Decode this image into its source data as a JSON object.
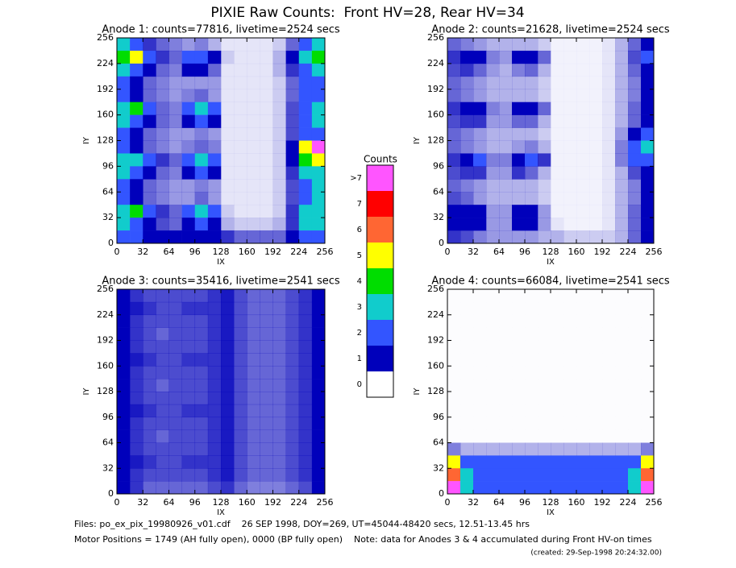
{
  "title": "PIXIE Raw Counts:  Front HV=28, Rear HV=34",
  "colorbar": {
    "title": "Counts",
    "labels": [
      ">7",
      "7",
      "6",
      "5",
      "4",
      "3",
      "2",
      "1",
      "0"
    ],
    "colors": [
      "#ff55ff",
      "#ff0000",
      "#ff6633",
      "#ffff00",
      "#00dd00",
      "#11cccc",
      "#3355ff",
      "#0000bb",
      "#ffffff"
    ]
  },
  "footer": [
    "Files: po_ex_pix_19980926_v01.cdf    26 SEP 1998, DOY=269, UT=45044-48420 secs, 12.51-13.45 hrs",
    "Motor Positions = 1749 (AH fully open), 0000 (BP fully open)    Note: data for Anodes 3 & 4 accumulated during Front HV-on times",
    "(created: 29-Sep-1998 20:24:32.00)"
  ],
  "chart_data": [
    {
      "type": "heatmap",
      "title": "Anode 1: counts=77816, livetime=2524 secs",
      "xlabel": "IX",
      "ylabel": "IY",
      "xlim": [
        0,
        256
      ],
      "ylim": [
        0,
        256
      ],
      "xticks": [
        0,
        32,
        64,
        96,
        128,
        160,
        192,
        224,
        256
      ],
      "yticks": [
        0,
        32,
        64,
        96,
        128,
        160,
        192,
        224,
        256
      ],
      "z": [
        [
          3,
          2,
          0.8,
          0.6,
          0.5,
          0.4,
          0.5,
          0.3,
          0.1,
          0.1,
          0.1,
          0.1,
          0.2,
          0.6,
          2,
          3
        ],
        [
          4,
          5,
          1.5,
          0.8,
          0.6,
          1.5,
          2,
          1,
          0.2,
          0.1,
          0.1,
          0.1,
          0.3,
          1,
          3,
          4
        ],
        [
          3,
          2,
          1,
          0.6,
          0.5,
          1,
          1,
          0.6,
          0.1,
          0.1,
          0.1,
          0.1,
          0.3,
          0.8,
          2,
          3
        ],
        [
          2,
          1,
          0.6,
          0.5,
          0.4,
          0.4,
          0.4,
          0.4,
          0.1,
          0.1,
          0.1,
          0.1,
          0.2,
          0.6,
          2,
          2
        ],
        [
          2,
          1,
          0.6,
          0.5,
          0.4,
          0.5,
          0.6,
          0.4,
          0.1,
          0.1,
          0.1,
          0.1,
          0.2,
          0.6,
          2,
          2
        ],
        [
          3,
          4,
          2,
          0.6,
          0.5,
          2,
          3,
          1.5,
          0.1,
          0.1,
          0.1,
          0.1,
          0.2,
          0.7,
          2,
          3
        ],
        [
          3,
          2,
          1,
          0.6,
          0.5,
          1,
          1.5,
          1,
          0.1,
          0.1,
          0.1,
          0.1,
          0.2,
          0.7,
          2,
          3
        ],
        [
          2,
          1,
          0.6,
          0.5,
          0.4,
          0.4,
          0.5,
          0.4,
          0.1,
          0.1,
          0.1,
          0.1,
          0.2,
          0.7,
          2,
          2
        ],
        [
          2,
          1,
          0.6,
          0.5,
          0.4,
          0.5,
          0.6,
          0.5,
          0.1,
          0.1,
          0.1,
          0.1,
          0.2,
          1,
          5,
          8
        ],
        [
          3,
          3,
          2,
          0.8,
          0.6,
          2,
          3,
          2,
          0.1,
          0.1,
          0.1,
          0.1,
          0.2,
          1,
          4,
          5
        ],
        [
          3,
          2,
          1,
          0.6,
          0.5,
          1,
          1.5,
          1,
          0.1,
          0.1,
          0.1,
          0.1,
          0.2,
          0.8,
          3,
          3
        ],
        [
          2,
          1,
          0.6,
          0.5,
          0.4,
          0.4,
          0.5,
          0.4,
          0.1,
          0.1,
          0.1,
          0.1,
          0.2,
          0.7,
          2,
          3
        ],
        [
          2,
          1,
          0.6,
          0.5,
          0.4,
          0.4,
          0.6,
          0.4,
          0.1,
          0.1,
          0.1,
          0.1,
          0.2,
          0.7,
          2,
          3
        ],
        [
          3,
          4,
          2,
          0.8,
          0.6,
          2,
          3,
          1.5,
          0.2,
          0.1,
          0.1,
          0.1,
          0.2,
          0.8,
          3,
          3
        ],
        [
          3,
          2,
          1,
          0.7,
          0.6,
          1,
          1.5,
          1,
          0.3,
          0.2,
          0.2,
          0.2,
          0.3,
          0.8,
          3,
          3
        ],
        [
          2,
          1.5,
          1,
          1,
          1,
          1,
          1,
          1,
          0.8,
          0.6,
          0.6,
          0.6,
          0.6,
          1,
          2,
          2
        ]
      ]
    },
    {
      "type": "heatmap",
      "title": "Anode 2: counts=21628, livetime=2524 secs",
      "xlabel": "IX",
      "ylabel": "IY",
      "xlim": [
        0,
        256
      ],
      "ylim": [
        0,
        256
      ],
      "xticks": [
        0,
        32,
        64,
        96,
        128,
        160,
        192,
        224,
        256
      ],
      "yticks": [
        0,
        32,
        64,
        96,
        128,
        160,
        192,
        224,
        256
      ],
      "z": [
        [
          0.6,
          0.5,
          0.4,
          0.3,
          0.3,
          0.3,
          0.3,
          0.2,
          0.05,
          0.05,
          0.05,
          0.05,
          0.1,
          0.3,
          0.6,
          1
        ],
        [
          0.8,
          1,
          1,
          0.5,
          0.4,
          1,
          1.2,
          0.6,
          0.05,
          0.05,
          0.05,
          0.05,
          0.1,
          0.3,
          0.7,
          1.5
        ],
        [
          0.7,
          0.8,
          0.6,
          0.4,
          0.3,
          0.5,
          0.6,
          0.3,
          0.05,
          0.05,
          0.05,
          0.05,
          0.1,
          0.3,
          0.6,
          1
        ],
        [
          0.6,
          0.5,
          0.4,
          0.3,
          0.3,
          0.3,
          0.3,
          0.2,
          0.05,
          0.05,
          0.05,
          0.05,
          0.1,
          0.3,
          0.5,
          1
        ],
        [
          0.6,
          0.5,
          0.4,
          0.3,
          0.3,
          0.3,
          0.3,
          0.2,
          0.05,
          0.05,
          0.05,
          0.05,
          0.1,
          0.3,
          0.5,
          1
        ],
        [
          0.8,
          1,
          1.2,
          0.5,
          0.4,
          1,
          1.2,
          0.6,
          0.05,
          0.05,
          0.05,
          0.05,
          0.1,
          0.3,
          0.6,
          1
        ],
        [
          0.7,
          0.8,
          0.8,
          0.4,
          0.4,
          0.6,
          0.6,
          0.3,
          0.05,
          0.05,
          0.05,
          0.05,
          0.1,
          0.3,
          0.6,
          1
        ],
        [
          0.6,
          0.5,
          0.4,
          0.3,
          0.3,
          0.3,
          0.3,
          0.2,
          0.05,
          0.05,
          0.05,
          0.05,
          0.1,
          0.4,
          1,
          1.5
        ],
        [
          0.6,
          0.5,
          0.4,
          0.3,
          0.3,
          0.4,
          0.5,
          0.3,
          0.05,
          0.05,
          0.05,
          0.05,
          0.1,
          0.5,
          2,
          3
        ],
        [
          0.8,
          1.2,
          1.5,
          0.5,
          0.5,
          1.2,
          1.5,
          0.8,
          0.05,
          0.05,
          0.05,
          0.05,
          0.1,
          0.5,
          2,
          2
        ],
        [
          0.7,
          0.8,
          0.8,
          0.4,
          0.4,
          0.8,
          0.6,
          0.3,
          0.05,
          0.05,
          0.05,
          0.05,
          0.1,
          0.3,
          0.7,
          1
        ],
        [
          0.6,
          0.5,
          0.4,
          0.3,
          0.3,
          0.3,
          0.3,
          0.2,
          0.05,
          0.05,
          0.05,
          0.05,
          0.1,
          0.3,
          0.5,
          1
        ],
        [
          0.7,
          0.6,
          0.4,
          0.3,
          0.3,
          0.3,
          0.3,
          0.2,
          0.05,
          0.05,
          0.05,
          0.05,
          0.1,
          0.3,
          0.5,
          1
        ],
        [
          1,
          1.2,
          1,
          0.4,
          0.4,
          1,
          1,
          0.4,
          0.05,
          0.05,
          0.05,
          0.05,
          0.1,
          0.3,
          0.6,
          1
        ],
        [
          1,
          1.2,
          1,
          0.4,
          0.4,
          1,
          1,
          0.4,
          0.1,
          0.05,
          0.05,
          0.05,
          0.1,
          0.3,
          0.6,
          1
        ],
        [
          0.8,
          0.7,
          0.5,
          0.4,
          0.4,
          0.4,
          0.4,
          0.3,
          0.3,
          0.2,
          0.2,
          0.2,
          0.2,
          0.3,
          0.6,
          1
        ]
      ]
    },
    {
      "type": "heatmap",
      "title": "Anode 3: counts=35416, livetime=2541 secs",
      "xlabel": "IX",
      "ylabel": "IY",
      "xlim": [
        0,
        256
      ],
      "ylim": [
        0,
        256
      ],
      "xticks": [
        0,
        32,
        64,
        96,
        128,
        160,
        192,
        224,
        256
      ],
      "yticks": [
        0,
        32,
        64,
        96,
        128,
        160,
        192,
        224,
        256
      ],
      "z": [
        [
          1,
          0.8,
          0.7,
          0.7,
          0.7,
          0.7,
          0.7,
          0.8,
          0.9,
          0.7,
          0.6,
          0.6,
          0.6,
          0.7,
          0.8,
          1
        ],
        [
          1,
          0.9,
          0.8,
          0.7,
          0.7,
          0.8,
          0.8,
          0.8,
          0.9,
          0.7,
          0.6,
          0.6,
          0.6,
          0.7,
          0.8,
          1
        ],
        [
          1,
          0.8,
          0.7,
          0.7,
          0.7,
          0.7,
          0.7,
          0.8,
          0.9,
          0.7,
          0.6,
          0.6,
          0.6,
          0.7,
          0.8,
          1
        ],
        [
          1,
          0.8,
          0.7,
          0.6,
          0.7,
          0.7,
          0.7,
          0.8,
          0.9,
          0.7,
          0.6,
          0.6,
          0.6,
          0.7,
          0.8,
          1
        ],
        [
          1,
          0.8,
          0.7,
          0.7,
          0.7,
          0.7,
          0.7,
          0.8,
          0.9,
          0.7,
          0.6,
          0.6,
          0.6,
          0.7,
          0.8,
          1
        ],
        [
          1,
          0.9,
          0.8,
          0.7,
          0.7,
          0.8,
          0.8,
          0.8,
          0.9,
          0.7,
          0.6,
          0.6,
          0.6,
          0.7,
          0.8,
          1
        ],
        [
          1,
          0.8,
          0.7,
          0.7,
          0.7,
          0.7,
          0.7,
          0.8,
          0.9,
          0.7,
          0.6,
          0.6,
          0.6,
          0.7,
          0.8,
          1
        ],
        [
          1,
          0.8,
          0.7,
          0.6,
          0.7,
          0.7,
          0.7,
          0.8,
          0.9,
          0.7,
          0.6,
          0.6,
          0.6,
          0.7,
          0.8,
          1
        ],
        [
          1,
          0.8,
          0.7,
          0.7,
          0.7,
          0.7,
          0.7,
          0.8,
          0.9,
          0.7,
          0.6,
          0.6,
          0.6,
          0.7,
          0.8,
          1
        ],
        [
          1,
          0.9,
          0.8,
          0.7,
          0.7,
          0.8,
          0.8,
          0.8,
          0.9,
          0.7,
          0.6,
          0.6,
          0.6,
          0.7,
          0.8,
          1
        ],
        [
          1,
          0.8,
          0.7,
          0.7,
          0.7,
          0.7,
          0.7,
          0.8,
          0.9,
          0.7,
          0.6,
          0.6,
          0.6,
          0.7,
          0.8,
          1
        ],
        [
          1,
          0.8,
          0.7,
          0.6,
          0.7,
          0.7,
          0.7,
          0.8,
          0.9,
          0.7,
          0.6,
          0.6,
          0.6,
          0.7,
          0.8,
          1
        ],
        [
          1,
          0.8,
          0.7,
          0.7,
          0.7,
          0.7,
          0.7,
          0.8,
          0.9,
          0.7,
          0.6,
          0.6,
          0.6,
          0.7,
          0.8,
          1
        ],
        [
          1,
          0.9,
          0.8,
          0.7,
          0.7,
          0.8,
          0.8,
          0.8,
          0.9,
          0.7,
          0.6,
          0.6,
          0.6,
          0.7,
          0.8,
          1
        ],
        [
          1,
          0.8,
          0.7,
          0.7,
          0.7,
          0.7,
          0.7,
          0.8,
          0.9,
          0.7,
          0.6,
          0.6,
          0.6,
          0.7,
          0.8,
          1
        ],
        [
          1,
          0.8,
          0.6,
          0.6,
          0.6,
          0.6,
          0.6,
          0.7,
          0.8,
          0.6,
          0.5,
          0.5,
          0.5,
          0.6,
          0.7,
          1
        ]
      ]
    },
    {
      "type": "heatmap",
      "title": "Anode 4: counts=66084, livetime=2541 secs",
      "xlabel": "IX",
      "ylabel": "IY",
      "xlim": [
        0,
        256
      ],
      "ylim": [
        0,
        256
      ],
      "xticks": [
        0,
        32,
        64,
        96,
        128,
        160,
        192,
        224,
        256
      ],
      "yticks": [
        0,
        32,
        64,
        96,
        128,
        160,
        192,
        224,
        256
      ],
      "z": [
        [
          0.01,
          0.01,
          0.01,
          0.01,
          0.01,
          0.01,
          0.01,
          0.01,
          0.01,
          0.01,
          0.01,
          0.01,
          0.01,
          0.01,
          0.01,
          0.01
        ],
        [
          0.01,
          0.01,
          0.01,
          0.01,
          0.01,
          0.01,
          0.01,
          0.01,
          0.01,
          0.01,
          0.01,
          0.01,
          0.01,
          0.01,
          0.01,
          0.01
        ],
        [
          0.01,
          0.01,
          0.01,
          0.01,
          0.01,
          0.01,
          0.01,
          0.01,
          0.01,
          0.01,
          0.01,
          0.01,
          0.01,
          0.01,
          0.01,
          0.01
        ],
        [
          0.01,
          0.01,
          0.01,
          0.01,
          0.01,
          0.01,
          0.01,
          0.01,
          0.01,
          0.01,
          0.01,
          0.01,
          0.01,
          0.01,
          0.01,
          0.01
        ],
        [
          0.01,
          0.01,
          0.01,
          0.01,
          0.01,
          0.01,
          0.01,
          0.01,
          0.01,
          0.01,
          0.01,
          0.01,
          0.01,
          0.01,
          0.01,
          0.01
        ],
        [
          0.01,
          0.01,
          0.01,
          0.01,
          0.01,
          0.01,
          0.01,
          0.01,
          0.01,
          0.01,
          0.01,
          0.01,
          0.01,
          0.01,
          0.01,
          0.01
        ],
        [
          0.01,
          0.01,
          0.01,
          0.01,
          0.01,
          0.01,
          0.01,
          0.01,
          0.01,
          0.01,
          0.01,
          0.01,
          0.01,
          0.01,
          0.01,
          0.01
        ],
        [
          0.01,
          0.01,
          0.01,
          0.01,
          0.01,
          0.01,
          0.01,
          0.01,
          0.01,
          0.01,
          0.01,
          0.01,
          0.01,
          0.01,
          0.01,
          0.01
        ],
        [
          0.01,
          0.01,
          0.01,
          0.01,
          0.01,
          0.01,
          0.01,
          0.01,
          0.01,
          0.01,
          0.01,
          0.01,
          0.01,
          0.01,
          0.01,
          0.01
        ],
        [
          0.01,
          0.01,
          0.01,
          0.01,
          0.01,
          0.01,
          0.01,
          0.01,
          0.01,
          0.01,
          0.01,
          0.01,
          0.01,
          0.01,
          0.01,
          0.01
        ],
        [
          0.01,
          0.01,
          0.01,
          0.01,
          0.01,
          0.01,
          0.01,
          0.01,
          0.01,
          0.01,
          0.01,
          0.01,
          0.01,
          0.01,
          0.01,
          0.01
        ],
        [
          0.01,
          0.01,
          0.01,
          0.01,
          0.01,
          0.01,
          0.01,
          0.01,
          0.01,
          0.01,
          0.01,
          0.01,
          0.01,
          0.01,
          0.01,
          0.01
        ],
        [
          0.5,
          0.3,
          0.3,
          0.3,
          0.3,
          0.3,
          0.3,
          0.3,
          0.3,
          0.3,
          0.3,
          0.3,
          0.3,
          0.3,
          0.3,
          0.5
        ],
        [
          5,
          2,
          1.5,
          1.5,
          1.5,
          1.5,
          1.5,
          1.5,
          1.5,
          1.5,
          1.5,
          1.5,
          1.5,
          1.5,
          2,
          5
        ],
        [
          6,
          3,
          1.5,
          1.5,
          1.5,
          1.5,
          1.5,
          1.5,
          1.5,
          1.5,
          1.5,
          1.5,
          1.5,
          1.5,
          3,
          6
        ],
        [
          8,
          3,
          2,
          2,
          2,
          2,
          2,
          2,
          2,
          2,
          2,
          2,
          2,
          2,
          3,
          8
        ]
      ]
    }
  ]
}
